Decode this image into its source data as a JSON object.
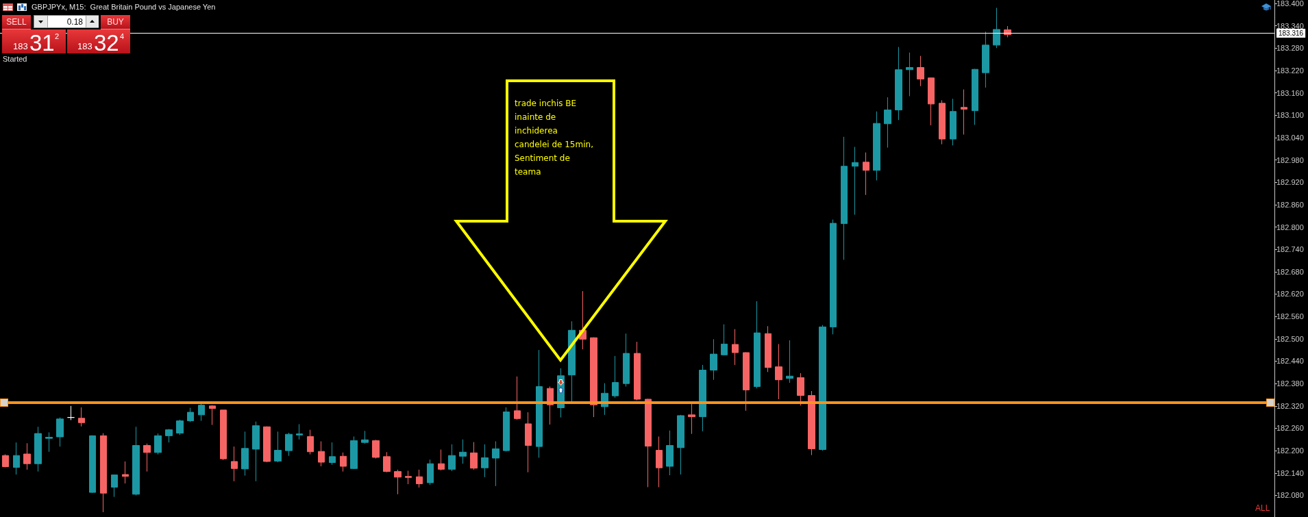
{
  "chart_data": {
    "type": "candlestick",
    "title": "GBPJPYx, M15:  Great Britain Pound vs Japanese Yen",
    "categories": [
      null,
      null,
      null,
      null,
      null,
      null,
      null,
      null,
      null,
      null,
      null,
      null,
      null,
      null,
      null,
      null,
      null,
      null,
      null,
      null,
      null,
      null,
      null,
      null,
      null,
      null,
      null,
      null,
      null,
      null,
      null,
      null,
      null,
      null,
      null,
      null,
      null,
      null,
      null,
      null,
      null,
      null,
      null,
      null,
      null,
      null,
      null,
      null,
      null,
      null,
      null,
      null,
      null,
      null,
      null,
      null,
      null,
      null,
      null,
      null,
      null,
      null,
      null,
      null,
      null,
      null,
      null,
      null,
      null,
      null,
      null,
      null,
      null,
      null,
      null,
      null,
      null,
      null,
      null,
      null,
      null,
      null,
      null,
      null,
      null,
      null,
      null,
      null,
      null,
      null,
      null,
      null,
      null,
      null,
      null,
      null,
      null,
      null,
      null,
      null,
      null,
      null,
      null,
      null,
      null,
      null,
      null,
      null,
      null,
      null,
      null,
      null,
      null,
      null,
      null,
      null,
      null
    ],
    "ohlc": [
      [
        182.187,
        182.19,
        182.155,
        182.157
      ],
      [
        182.155,
        182.222,
        182.136,
        182.187
      ],
      [
        182.191,
        182.22,
        182.149,
        182.165
      ],
      [
        182.165,
        182.264,
        182.144,
        182.246
      ],
      [
        182.233,
        182.249,
        182.197,
        182.236
      ],
      [
        182.237,
        182.289,
        182.211,
        182.285
      ],
      [
        182.289,
        182.32,
        182.282,
        182.289
      ],
      [
        182.287,
        182.316,
        182.265,
        182.275
      ],
      [
        182.088,
        182.241,
        182.087,
        182.24
      ],
      [
        182.24,
        182.247,
        182.035,
        182.086
      ],
      [
        182.102,
        182.136,
        182.076,
        182.135
      ],
      [
        182.136,
        182.171,
        182.112,
        182.131
      ],
      [
        182.083,
        182.264,
        182.08,
        182.214
      ],
      [
        182.214,
        182.219,
        182.144,
        182.195
      ],
      [
        182.195,
        182.246,
        182.19,
        182.24
      ],
      [
        182.24,
        182.258,
        182.222,
        182.256
      ],
      [
        182.247,
        182.283,
        182.242,
        182.28
      ],
      [
        182.28,
        182.315,
        182.277,
        182.303
      ],
      [
        182.296,
        182.331,
        182.28,
        182.322
      ],
      [
        182.32,
        182.322,
        182.269,
        182.313
      ],
      [
        182.309,
        182.309,
        182.175,
        182.178
      ],
      [
        182.171,
        182.211,
        182.118,
        182.152
      ],
      [
        182.151,
        182.251,
        182.133,
        182.206
      ],
      [
        182.204,
        182.278,
        182.118,
        182.267
      ],
      [
        182.264,
        182.265,
        182.169,
        182.171
      ],
      [
        182.172,
        182.251,
        182.169,
        182.201
      ],
      [
        182.2,
        182.248,
        182.186,
        182.244
      ],
      [
        182.242,
        182.271,
        182.23,
        182.245
      ],
      [
        182.238,
        182.256,
        182.19,
        182.197
      ],
      [
        182.198,
        182.225,
        182.158,
        182.169
      ],
      [
        182.168,
        182.222,
        182.162,
        182.184
      ],
      [
        182.185,
        182.195,
        182.144,
        182.158
      ],
      [
        182.152,
        182.238,
        182.151,
        182.227
      ],
      [
        182.222,
        182.253,
        182.219,
        182.229
      ],
      [
        182.227,
        182.229,
        182.179,
        182.182
      ],
      [
        182.184,
        182.196,
        182.142,
        182.144
      ],
      [
        182.144,
        182.149,
        182.083,
        182.129
      ],
      [
        182.131,
        182.146,
        182.11,
        182.128
      ],
      [
        182.13,
        182.149,
        182.101,
        182.111
      ],
      [
        182.114,
        182.176,
        182.108,
        182.165
      ],
      [
        182.165,
        182.203,
        182.147,
        182.15
      ],
      [
        182.15,
        182.217,
        182.145,
        182.187
      ],
      [
        182.185,
        182.23,
        182.165,
        182.196
      ],
      [
        182.194,
        182.223,
        182.149,
        182.153
      ],
      [
        182.154,
        182.217,
        182.129,
        182.181
      ],
      [
        182.18,
        182.225,
        182.105,
        182.205
      ],
      [
        182.2,
        182.316,
        182.198,
        182.304
      ],
      [
        182.307,
        182.399,
        182.283,
        182.286
      ],
      [
        182.272,
        182.303,
        182.142,
        182.214
      ],
      [
        182.211,
        182.47,
        182.181,
        182.372
      ],
      [
        182.367,
        182.372,
        182.27,
        182.323
      ],
      [
        182.315,
        182.421,
        182.289,
        182.401
      ],
      [
        182.403,
        182.547,
        182.331,
        182.523
      ],
      [
        182.523,
        182.628,
        182.472,
        182.499
      ],
      [
        182.503,
        182.504,
        182.29,
        182.323
      ],
      [
        182.318,
        182.381,
        182.296,
        182.354
      ],
      [
        182.347,
        182.454,
        182.342,
        182.383
      ],
      [
        182.38,
        182.514,
        182.372,
        182.461
      ],
      [
        182.461,
        182.492,
        182.335,
        182.338
      ],
      [
        182.338,
        182.339,
        182.102,
        182.212
      ],
      [
        182.201,
        182.238,
        182.102,
        182.154
      ],
      [
        182.158,
        182.254,
        182.134,
        182.214
      ],
      [
        182.208,
        182.296,
        182.136,
        182.294
      ],
      [
        182.296,
        182.326,
        182.245,
        182.291
      ],
      [
        182.291,
        182.43,
        182.252,
        182.416
      ],
      [
        182.416,
        182.499,
        182.39,
        182.459
      ],
      [
        182.457,
        182.539,
        182.456,
        182.486
      ],
      [
        182.485,
        182.526,
        182.43,
        182.463
      ],
      [
        182.463,
        182.464,
        182.307,
        182.363
      ],
      [
        182.372,
        182.601,
        182.367,
        182.516
      ],
      [
        182.514,
        182.534,
        182.411,
        182.423
      ],
      [
        182.425,
        182.486,
        182.338,
        182.39
      ],
      [
        182.394,
        182.496,
        182.382,
        182.4
      ],
      [
        182.396,
        182.408,
        182.321,
        182.348
      ],
      [
        182.348,
        182.36,
        182.188,
        182.205
      ],
      [
        182.203,
        182.537,
        182.2,
        182.532
      ],
      [
        182.532,
        182.82,
        182.512,
        182.81
      ],
      [
        182.809,
        183.042,
        182.712,
        182.963
      ],
      [
        182.963,
        183.015,
        182.833,
        182.973
      ],
      [
        182.974,
        183.0,
        182.886,
        182.952
      ],
      [
        182.952,
        183.11,
        182.925,
        183.078
      ],
      [
        183.077,
        183.148,
        183.013,
        183.114
      ],
      [
        183.114,
        183.283,
        183.087,
        183.222
      ],
      [
        183.222,
        183.268,
        183.151,
        183.228
      ],
      [
        183.228,
        183.259,
        183.178,
        183.197
      ],
      [
        183.2,
        183.201,
        183.073,
        183.13
      ],
      [
        183.132,
        183.14,
        183.022,
        183.036
      ],
      [
        183.036,
        183.144,
        183.019,
        183.11
      ],
      [
        183.121,
        183.169,
        183.048,
        183.116
      ],
      [
        183.112,
        183.224,
        183.074,
        183.223
      ],
      [
        183.214,
        183.324,
        183.174,
        183.288
      ],
      [
        183.288,
        183.388,
        183.28,
        183.33
      ],
      [
        183.329,
        183.339,
        183.309,
        183.316
      ],
      null,
      null,
      null,
      null,
      null,
      null,
      null,
      null,
      null,
      null,
      null,
      null,
      null,
      null,
      null,
      null,
      null,
      null,
      null,
      null,
      null,
      null,
      null,
      null
    ],
    "colors": [
      "#f76464",
      "#1c98a4",
      "#f76464",
      "#1c98a4",
      "#1c98a4",
      "#1c98a4",
      "#ffffff",
      "#f76464",
      "#1c98a4",
      "#f76464",
      "#1c98a4",
      "#f76464",
      "#1c98a4",
      "#f76464",
      "#1c98a4",
      "#1c98a4",
      "#1c98a4",
      "#1c98a4",
      "#1c98a4",
      "#f76464",
      "#f76464",
      "#f76464",
      "#1c98a4",
      "#1c98a4",
      "#f76464",
      "#1c98a4",
      "#1c98a4",
      "#1c98a4",
      "#f76464",
      "#f76464",
      "#1c98a4",
      "#f76464",
      "#1c98a4",
      "#1c98a4",
      "#f76464",
      "#f76464",
      "#f76464",
      "#f76464",
      "#f76464",
      "#1c98a4",
      "#f76464",
      "#1c98a4",
      "#1c98a4",
      "#f76464",
      "#1c98a4",
      "#1c98a4",
      "#1c98a4",
      "#f76464",
      "#f76464",
      "#1c98a4",
      "#f76464",
      "#1c98a4",
      "#1c98a4",
      "#f76464",
      "#f76464",
      "#1c98a4",
      "#1c98a4",
      "#1c98a4",
      "#f76464",
      "#f76464",
      "#f76464",
      "#1c98a4",
      "#1c98a4",
      "#f76464",
      "#1c98a4",
      "#1c98a4",
      "#1c98a4",
      "#f76464",
      "#f76464",
      "#1c98a4",
      "#f76464",
      "#f76464",
      "#1c98a4",
      "#f76464",
      "#f76464",
      "#1c98a4",
      "#1c98a4",
      "#1c98a4",
      "#1c98a4",
      "#f76464",
      "#1c98a4",
      "#1c98a4",
      "#1c98a4",
      "#1c98a4",
      "#f76464",
      "#f76464",
      "#f76464",
      "#1c98a4",
      "#f76464",
      "#1c98a4",
      "#1c98a4",
      "#1c98a4",
      "#f76464",
      null,
      null,
      null,
      null,
      null,
      null,
      null,
      null,
      null,
      null,
      null,
      null,
      null,
      null,
      null,
      null,
      null,
      null,
      null,
      null,
      null,
      null,
      null,
      null
    ],
    "ylim": [
      182.022,
      183.409
    ],
    "yticks": [
      {
        "value": 182.08,
        "label": "182.080"
      },
      {
        "value": 182.14,
        "label": "182.140"
      },
      {
        "value": 182.2,
        "label": "182.200"
      },
      {
        "value": 182.26,
        "label": "182.260"
      },
      {
        "value": 182.32,
        "label": "182.320"
      },
      {
        "value": 182.38,
        "label": "182.380"
      },
      {
        "value": 182.44,
        "label": "182.440"
      },
      {
        "value": 182.5,
        "label": "182.500"
      },
      {
        "value": 182.56,
        "label": "182.560"
      },
      {
        "value": 182.62,
        "label": "182.620"
      },
      {
        "value": 182.68,
        "label": "182.680"
      },
      {
        "value": 182.74,
        "label": "182.740"
      },
      {
        "value": 182.8,
        "label": "182.800"
      },
      {
        "value": 182.86,
        "label": "182.860"
      },
      {
        "value": 182.92,
        "label": "182.920"
      },
      {
        "value": 182.98,
        "label": "182.980"
      },
      {
        "value": 183.04,
        "label": "183.040"
      },
      {
        "value": 183.1,
        "label": "183.100"
      },
      {
        "value": 183.16,
        "label": "183.160"
      },
      {
        "value": 183.22,
        "label": "183.220"
      },
      {
        "value": 183.28,
        "label": "183.280"
      },
      {
        "value": 183.34,
        "label": "183.340"
      },
      {
        "value": 183.4,
        "label": "183.400"
      }
    ],
    "tick_labels": "y",
    "ref_lines": [
      {
        "axis": "y",
        "value": 182.328,
        "color": "#f7931e"
      },
      {
        "axis": "y",
        "value": 183.316,
        "label": "183.316",
        "color": "#ffffff"
      }
    ],
    "annotations": [
      "trade inchis BE\ninainte de\ninchiderea\ncandelei de 15min,\nSentiment de\nteama",
      "SELL",
      "0.18",
      "BUY",
      "183",
      "31",
      "2",
      "183",
      "32",
      "4",
      "Started",
      "ALL"
    ]
  }
}
